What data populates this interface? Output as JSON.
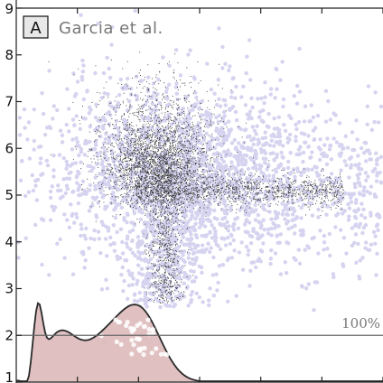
{
  "panel": {
    "letter": "A",
    "title": "Garcia et al."
  },
  "chart_data": {
    "type": "scatter",
    "title": "Garcia et al.",
    "ylim": [
      1,
      9
    ],
    "yticks": [
      1,
      2,
      3,
      4,
      5,
      6,
      7,
      8,
      9
    ],
    "xticks_unlabeled": true,
    "grid": false,
    "reference_line": {
      "y": 2,
      "label": "100%"
    },
    "clusters": [
      {
        "description": "dense core",
        "center_y": 5.7,
        "spread": "high density"
      },
      {
        "description": "horizontal band",
        "y": 5.1,
        "extent": "right side"
      },
      {
        "description": "vertical stream",
        "from_y": 2.5,
        "to_y": 5.5
      }
    ],
    "colors": {
      "dense_points": "#2b2b2b",
      "sparse_points": "#d5d3ef",
      "density_fill": "#ddb9b9",
      "density_line": "#2a2a2a",
      "reference_line": "#666666"
    }
  }
}
